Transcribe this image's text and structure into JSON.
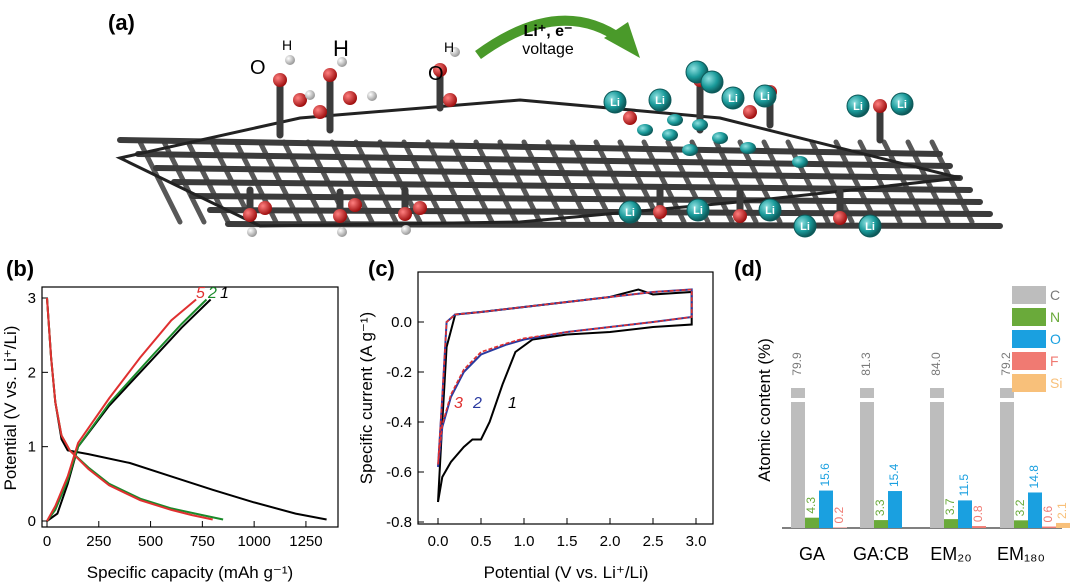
{
  "panels": {
    "a": {
      "letter": "(a)",
      "reaction_label_top": "Li⁺, e⁻",
      "reaction_label_bottom": "voltage",
      "atom_labels": {
        "oxygen": "O",
        "hydrogen": "H",
        "lithium": "Li"
      },
      "colors": {
        "carbon": "#3b3b3b",
        "oxygen": "#d42020",
        "hydrogen": "#d8d8d8",
        "lithium": "#1a9a9a",
        "arrow": "#4a9a2a"
      }
    },
    "b": {
      "letter": "(b)",
      "curve_labels": [
        {
          "text": "5",
          "color": "#e03030"
        },
        {
          "text": "2",
          "color": "#1a8a2a"
        },
        {
          "text": "1",
          "color": "#000000"
        }
      ]
    },
    "c": {
      "letter": "(c)",
      "curve_labels": [
        {
          "text": "3",
          "color": "#e03030"
        },
        {
          "text": "2",
          "color": "#2a3aa0"
        },
        {
          "text": "1",
          "color": "#000000"
        }
      ]
    },
    "d": {
      "letter": "(d)"
    }
  },
  "chart_data": [
    {
      "type": "line",
      "panel": "b",
      "xlabel": "Specific capacity (mAh g⁻¹)",
      "ylabel": "Potential (V vs. Li⁺/Li)",
      "xlim": [
        0,
        1400
      ],
      "ylim": [
        0,
        3.1
      ],
      "xticks": [
        0,
        250,
        500,
        750,
        1000,
        1250
      ],
      "yticks": [
        0,
        1,
        2,
        3
      ],
      "series": [
        {
          "name": "1",
          "color": "#000000",
          "discharge": [
            [
              0,
              3.0
            ],
            [
              20,
              2.2
            ],
            [
              40,
              1.6
            ],
            [
              70,
              1.1
            ],
            [
              100,
              0.95
            ],
            [
              200,
              0.9
            ],
            [
              400,
              0.78
            ],
            [
              600,
              0.6
            ],
            [
              800,
              0.42
            ],
            [
              1000,
              0.25
            ],
            [
              1200,
              0.1
            ],
            [
              1350,
              0.02
            ]
          ],
          "charge": [
            [
              0,
              0.0
            ],
            [
              50,
              0.1
            ],
            [
              100,
              0.5
            ],
            [
              150,
              1.0
            ],
            [
              300,
              1.55
            ],
            [
              500,
              2.15
            ],
            [
              650,
              2.6
            ],
            [
              790,
              2.98
            ]
          ]
        },
        {
          "name": "2",
          "color": "#1a8a2a",
          "discharge": [
            [
              0,
              3.0
            ],
            [
              20,
              2.2
            ],
            [
              40,
              1.6
            ],
            [
              70,
              1.15
            ],
            [
              110,
              0.95
            ],
            [
              200,
              0.72
            ],
            [
              300,
              0.5
            ],
            [
              450,
              0.3
            ],
            [
              600,
              0.17
            ],
            [
              750,
              0.08
            ],
            [
              850,
              0.02
            ]
          ],
          "charge": [
            [
              0,
              0.0
            ],
            [
              40,
              0.15
            ],
            [
              100,
              0.55
            ],
            [
              150,
              1.0
            ],
            [
              300,
              1.58
            ],
            [
              500,
              2.2
            ],
            [
              650,
              2.65
            ],
            [
              770,
              2.98
            ]
          ]
        },
        {
          "name": "5",
          "color": "#e03030",
          "discharge": [
            [
              0,
              3.0
            ],
            [
              20,
              2.2
            ],
            [
              40,
              1.6
            ],
            [
              70,
              1.15
            ],
            [
              110,
              0.95
            ],
            [
              200,
              0.7
            ],
            [
              300,
              0.48
            ],
            [
              450,
              0.28
            ],
            [
              600,
              0.15
            ],
            [
              700,
              0.08
            ],
            [
              800,
              0.02
            ]
          ],
          "charge": [
            [
              0,
              0.0
            ],
            [
              40,
              0.2
            ],
            [
              100,
              0.6
            ],
            [
              150,
              1.05
            ],
            [
              300,
              1.65
            ],
            [
              450,
              2.2
            ],
            [
              600,
              2.7
            ],
            [
              720,
              2.98
            ]
          ]
        }
      ]
    },
    {
      "type": "line",
      "panel": "c",
      "xlabel": "Potential (V vs. Li⁺/Li)",
      "ylabel": "Specific current (A g⁻¹)",
      "xlim": [
        -0.2,
        3.2
      ],
      "ylim": [
        -0.8,
        0.2
      ],
      "xticks": [
        0.0,
        0.5,
        1.0,
        1.5,
        2.0,
        2.5,
        3.0
      ],
      "yticks": [
        0.0,
        -0.2,
        -0.4,
        -0.6,
        -0.8
      ],
      "series": [
        {
          "name": "1",
          "color": "#000000",
          "points": [
            [
              0.0,
              -0.72
            ],
            [
              0.05,
              -0.62
            ],
            [
              0.15,
              -0.56
            ],
            [
              0.3,
              -0.5
            ],
            [
              0.4,
              -0.47
            ],
            [
              0.5,
              -0.47
            ],
            [
              0.6,
              -0.4
            ],
            [
              0.75,
              -0.25
            ],
            [
              0.9,
              -0.12
            ],
            [
              1.1,
              -0.07
            ],
            [
              1.5,
              -0.05
            ],
            [
              2.0,
              -0.04
            ],
            [
              2.5,
              -0.02
            ],
            [
              2.95,
              -0.01
            ],
            [
              2.95,
              0.12
            ],
            [
              2.5,
              0.11
            ],
            [
              2.33,
              0.13
            ],
            [
              2.0,
              0.1
            ],
            [
              1.5,
              0.08
            ],
            [
              1.0,
              0.06
            ],
            [
              0.5,
              0.04
            ],
            [
              0.2,
              0.03
            ],
            [
              0.1,
              -0.1
            ],
            [
              0.05,
              -0.4
            ],
            [
              0.0,
              -0.72
            ]
          ]
        },
        {
          "name": "2",
          "color": "#2a3aa0",
          "points": [
            [
              0.0,
              -0.58
            ],
            [
              0.05,
              -0.42
            ],
            [
              0.15,
              -0.3
            ],
            [
              0.3,
              -0.2
            ],
            [
              0.5,
              -0.13
            ],
            [
              0.8,
              -0.09
            ],
            [
              1.0,
              -0.07
            ],
            [
              1.5,
              -0.04
            ],
            [
              2.0,
              -0.02
            ],
            [
              2.5,
              0.0
            ],
            [
              2.95,
              0.02
            ],
            [
              2.95,
              0.13
            ],
            [
              2.5,
              0.12
            ],
            [
              2.0,
              0.1
            ],
            [
              1.5,
              0.08
            ],
            [
              1.0,
              0.06
            ],
            [
              0.5,
              0.04
            ],
            [
              0.2,
              0.03
            ],
            [
              0.1,
              0.0
            ],
            [
              0.05,
              -0.3
            ],
            [
              0.0,
              -0.58
            ]
          ]
        },
        {
          "name": "3",
          "color": "#e03030",
          "points": [
            [
              0.0,
              -0.57
            ],
            [
              0.05,
              -0.41
            ],
            [
              0.15,
              -0.29
            ],
            [
              0.3,
              -0.19
            ],
            [
              0.5,
              -0.12
            ],
            [
              0.8,
              -0.085
            ],
            [
              1.0,
              -0.065
            ],
            [
              1.5,
              -0.04
            ],
            [
              2.0,
              -0.02
            ],
            [
              2.5,
              0.0
            ],
            [
              2.95,
              0.02
            ],
            [
              2.95,
              0.13
            ],
            [
              2.5,
              0.12
            ],
            [
              2.0,
              0.1
            ],
            [
              1.5,
              0.08
            ],
            [
              1.0,
              0.06
            ],
            [
              0.5,
              0.04
            ],
            [
              0.2,
              0.03
            ],
            [
              0.1,
              0.0
            ],
            [
              0.05,
              -0.3
            ],
            [
              0.0,
              -0.57
            ]
          ]
        }
      ]
    },
    {
      "type": "bar",
      "panel": "d",
      "ylabel": "Atomic content (%)",
      "categories": [
        "GA",
        "GA:CB",
        "EM₂₀",
        "EM₁₈₀"
      ],
      "series": [
        {
          "name": "C",
          "color": "#bdbdbd",
          "values": [
            79.9,
            81.3,
            84.0,
            79.2
          ],
          "labels": [
            "79.9",
            "81.3",
            "84.0",
            "79.2"
          ]
        },
        {
          "name": "N",
          "color": "#6aaa3a",
          "values": [
            4.3,
            3.3,
            3.7,
            3.2
          ],
          "labels": [
            "4.3",
            "3.3",
            "3.7",
            "3.2"
          ]
        },
        {
          "name": "O",
          "color": "#1aa0e0",
          "values": [
            15.6,
            15.4,
            11.5,
            14.8
          ],
          "labels": [
            "15.6",
            "15.4",
            "11.5",
            "14.8"
          ]
        },
        {
          "name": "F",
          "color": "#f07a72",
          "values": [
            0.2,
            0.0,
            0.8,
            0.6
          ],
          "labels": [
            "0.2",
            "",
            "0.8",
            "0.6"
          ]
        },
        {
          "name": "Si",
          "color": "#f8c07a",
          "values": [
            0.0,
            0.0,
            0.0,
            2.1
          ],
          "labels": [
            "",
            "",
            "",
            "2.1"
          ]
        }
      ]
    }
  ]
}
